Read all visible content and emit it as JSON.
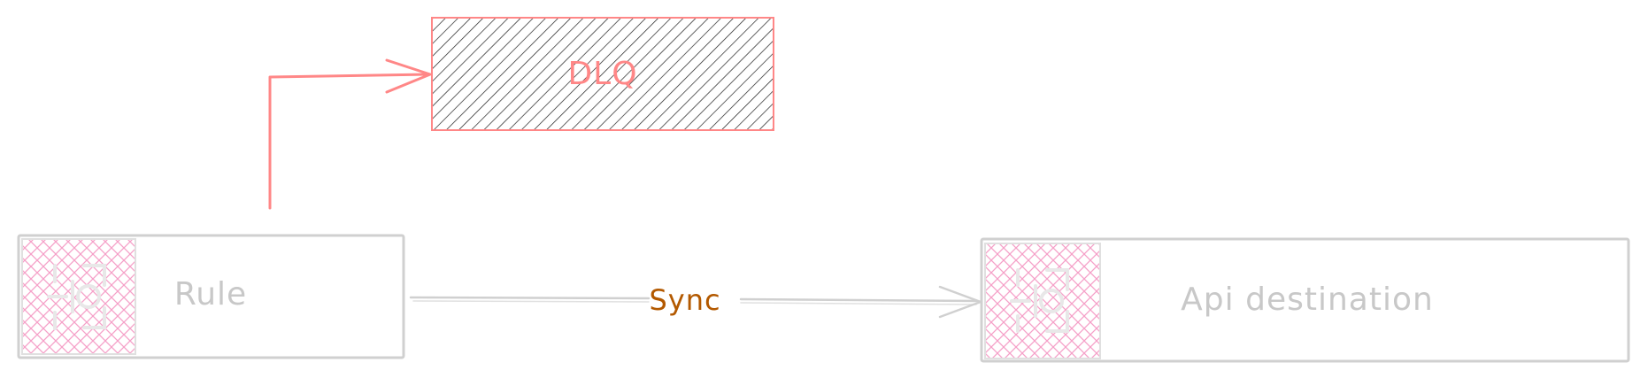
{
  "diagram": {
    "nodes": {
      "dlq": {
        "label": "DLQ",
        "color": "#ff8787",
        "hatch_color": "#1e1e1e"
      },
      "rule": {
        "label": "Rule",
        "color": "#d0d0d0",
        "icon": "eventbridge-rule-icon",
        "icon_color": "#f5a0c8"
      },
      "api_destination": {
        "label": "Api destination",
        "color": "#d0d0d0",
        "icon": "api-destination-icon",
        "icon_color": "#f5a0c8"
      }
    },
    "edges": {
      "rule_to_dlq": {
        "color": "#ff8787"
      },
      "rule_to_api": {
        "label": "Sync",
        "label_color": "#b35900",
        "color": "#d0d0d0"
      }
    }
  }
}
